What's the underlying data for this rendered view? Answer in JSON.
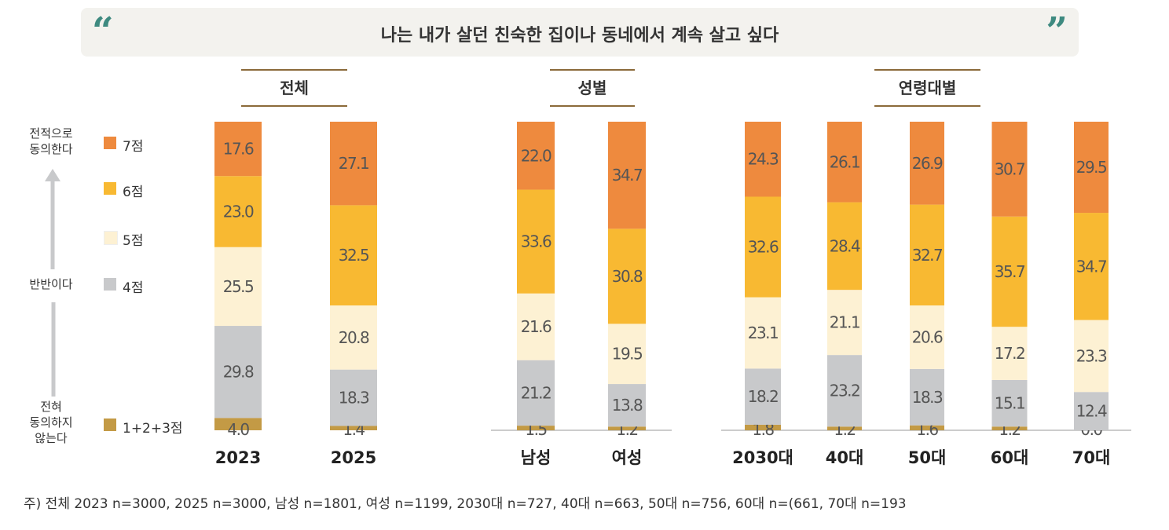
{
  "title": "나는 내가 살던 친숙한 집이나 동네에서 계속 살고 싶다",
  "groups": [
    "전체",
    "성별",
    "연령대별"
  ],
  "legend": {
    "top_label": "전적으로\n동의한다",
    "mid_label": "반반이다",
    "bottom_label": "전혀\n동의하지\n않는다",
    "items": [
      "7점",
      "6점",
      "5점",
      "4점",
      "1+2+3점"
    ]
  },
  "colors": {
    "7점": "#EE8A3E",
    "6점": "#F8B932",
    "5점": "#FDF1D3",
    "4점": "#C8C9CB",
    "1+2+3점": "#C39A45",
    "quote": "#3E8A80"
  },
  "note": "주) 전체 2023 n=3000, 2025 n=3000, 남성 n=1801, 여성 n=1199, 2030대 n=727, 40대 n=663, 50대 n=756, 60대 n=(661, 70대 n=193",
  "chart_data": {
    "type": "bar",
    "stacked": true,
    "categories": [
      "2023",
      "2025",
      "남성",
      "여성",
      "2030대",
      "40대",
      "50대",
      "60대",
      "70대"
    ],
    "series": [
      {
        "name": "1+2+3점",
        "values": [
          4.0,
          1.4,
          1.5,
          1.2,
          1.8,
          1.2,
          1.6,
          1.2,
          0.0
        ]
      },
      {
        "name": "4점",
        "values": [
          29.8,
          18.3,
          21.2,
          13.8,
          18.2,
          23.2,
          18.3,
          15.1,
          12.4
        ]
      },
      {
        "name": "5점",
        "values": [
          25.5,
          20.8,
          21.6,
          19.5,
          23.1,
          21.1,
          20.6,
          17.2,
          23.3
        ]
      },
      {
        "name": "6점",
        "values": [
          23.0,
          32.5,
          33.6,
          30.8,
          32.6,
          28.4,
          32.7,
          35.7,
          34.7
        ]
      },
      {
        "name": "7점",
        "values": [
          17.6,
          27.1,
          22.0,
          34.7,
          24.3,
          26.1,
          26.9,
          30.7,
          29.5
        ]
      }
    ],
    "ylim": [
      0,
      100
    ]
  }
}
